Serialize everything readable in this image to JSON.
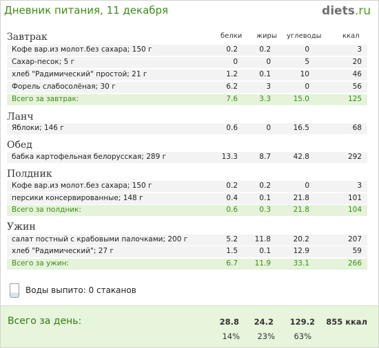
{
  "header": {
    "title": "Дневник питания, 11 декабря",
    "logo_main": "diets",
    "logo_tld": ".ru"
  },
  "columns": {
    "protein": "белки",
    "fat": "жиры",
    "carbs": "углеводы",
    "kcal": "ккал"
  },
  "meals": [
    {
      "title": "Завтрак",
      "items": [
        {
          "name": "Кофе вар.из молот.без сахара; 150 г",
          "protein": "0.2",
          "fat": "0.2",
          "carbs": "0",
          "kcal": "3"
        },
        {
          "name": "Сахар-песок; 5 г",
          "protein": "0",
          "fat": "0",
          "carbs": "5",
          "kcal": "20"
        },
        {
          "name": "хлеб \"Радимический\" простой; 21 г",
          "protein": "1.2",
          "fat": "0.1",
          "carbs": "10",
          "kcal": "46"
        },
        {
          "name": "Форель слабосолёная; 30 г",
          "protein": "6.2",
          "fat": "3",
          "carbs": "0",
          "kcal": "56"
        }
      ],
      "total": {
        "name": "Всего за завтрак:",
        "protein": "7.6",
        "fat": "3.3",
        "carbs": "15.0",
        "kcal": "125"
      }
    },
    {
      "title": "Ланч",
      "items": [
        {
          "name": "Яблоки; 146 г",
          "protein": "0.6",
          "fat": "0",
          "carbs": "16.5",
          "kcal": "68"
        }
      ]
    },
    {
      "title": "Обед",
      "items": [
        {
          "name": "бабка картофельная белорусская; 289 г",
          "protein": "13.3",
          "fat": "8.7",
          "carbs": "42.8",
          "kcal": "292"
        }
      ]
    },
    {
      "title": "Полдник",
      "items": [
        {
          "name": "Кофе вар.из молот.без сахара; 150 г",
          "protein": "0.2",
          "fat": "0.2",
          "carbs": "0",
          "kcal": "3"
        },
        {
          "name": "персики консервированные; 148 г",
          "protein": "0.4",
          "fat": "0.1",
          "carbs": "21.8",
          "kcal": "101"
        }
      ],
      "total": {
        "name": "Всего за полдник:",
        "protein": "0.6",
        "fat": "0.3",
        "carbs": "21.8",
        "kcal": "104"
      }
    },
    {
      "title": "Ужин",
      "items": [
        {
          "name": "салат постный с крабовыми палочками; 200 г",
          "protein": "5.2",
          "fat": "11.8",
          "carbs": "20.2",
          "kcal": "207"
        },
        {
          "name": "хлеб \"Радимический\"; 27 г",
          "protein": "1.5",
          "fat": "0.1",
          "carbs": "12.9",
          "kcal": "59"
        }
      ],
      "total": {
        "name": "Всего за ужин:",
        "protein": "6.7",
        "fat": "11.9",
        "carbs": "33.1",
        "kcal": "266"
      }
    }
  ],
  "water": {
    "label": "Воды выпито: 0 стаканов",
    "icon": "glass-icon"
  },
  "day_total": {
    "label": "Всего за день:",
    "protein": "28.8",
    "fat": "24.2",
    "carbs": "129.2",
    "kcal": "855 ккал",
    "protein_pct": "14%",
    "fat_pct": "23%",
    "carbs_pct": "63%"
  },
  "colors": {
    "accent": "#3f8a1b",
    "total_row_bg": "#e4f3d9",
    "row_bg": "#f3f3f3",
    "day_bg": "#e7f5dc"
  }
}
